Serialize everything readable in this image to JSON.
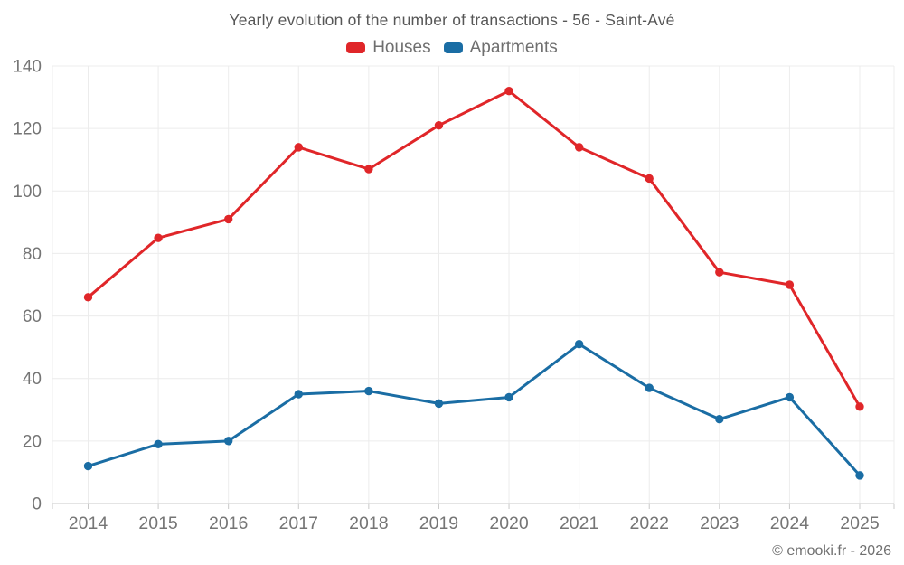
{
  "title": "Yearly evolution of the number of transactions - 56 - Saint-Avé",
  "footer": "© emooki.fr - 2026",
  "legend": {
    "items": [
      {
        "label": "Houses",
        "color": "#e02629"
      },
      {
        "label": "Apartments",
        "color": "#1a6da4"
      }
    ]
  },
  "colors": {
    "background": "#ffffff",
    "grid": "#ececec",
    "axis": "#c9c9c9",
    "tick": "#c9c9c9",
    "title_text": "#575757",
    "label_text": "#757575",
    "houses": "#e02629",
    "apartments": "#1a6da4"
  },
  "chart_data": {
    "type": "line",
    "title": "Yearly evolution of the number of transactions - 56 - Saint-Avé",
    "x": [
      2014,
      2015,
      2016,
      2017,
      2018,
      2019,
      2020,
      2021,
      2022,
      2023,
      2024,
      2025
    ],
    "series": [
      {
        "name": "Houses",
        "color": "#e02629",
        "values": [
          66,
          85,
          91,
          114,
          107,
          121,
          132,
          114,
          104,
          74,
          70,
          31
        ]
      },
      {
        "name": "Apartments",
        "color": "#1a6da4",
        "values": [
          12,
          19,
          20,
          35,
          36,
          32,
          34,
          51,
          37,
          27,
          34,
          9
        ]
      }
    ],
    "xlabel": "",
    "ylabel": "",
    "ylim": [
      0,
      140
    ],
    "ytick_step": 20,
    "yticks": [
      0,
      20,
      40,
      60,
      80,
      100,
      120,
      140
    ],
    "grid": true,
    "legend_position": "top",
    "marker": "circle",
    "attribution": "© emooki.fr - 2026"
  }
}
